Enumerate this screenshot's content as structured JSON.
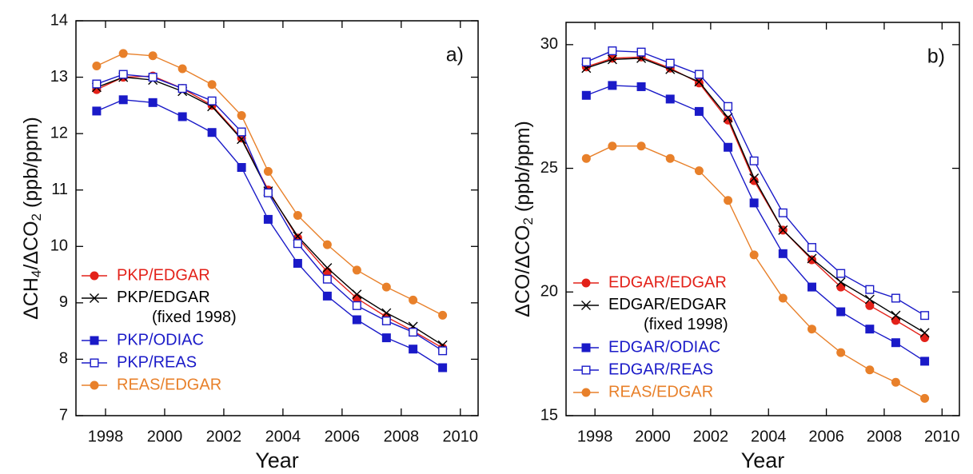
{
  "chart_data": [
    {
      "type": "line",
      "annotation": "a)",
      "x_label": "Year",
      "y_label": [
        "ΔCH",
        "4",
        "/ΔCO",
        "2",
        " (ppb/ppm)"
      ],
      "x": [
        1997.7,
        1998.6,
        1999.6,
        2000.6,
        2001.6,
        2002.6,
        2003.5,
        2004.5,
        2005.5,
        2006.5,
        2007.5,
        2008.4,
        2009.4
      ],
      "xlim": [
        1997,
        2010.6
      ],
      "xticks": [
        1998,
        2000,
        2002,
        2004,
        2006,
        2008,
        2010
      ],
      "ylim": [
        7,
        14
      ],
      "yticks": [
        7,
        8,
        9,
        10,
        11,
        12,
        13,
        14
      ],
      "legend": "lower left",
      "series": [
        {
          "name": "PKP/EDGAR",
          "color": "#e32119",
          "marker": "circle",
          "values": [
            12.78,
            13.0,
            13.02,
            12.8,
            12.5,
            11.92,
            11.0,
            10.15,
            9.55,
            9.08,
            8.75,
            8.5,
            8.2
          ]
        },
        {
          "name": "PKP/EDGAR\n(fixed 1998)",
          "color": "#000000",
          "marker": "cross",
          "values": [
            12.82,
            13.0,
            12.95,
            12.75,
            12.48,
            11.9,
            10.98,
            10.18,
            9.62,
            9.15,
            8.82,
            8.58,
            8.25
          ]
        },
        {
          "name": "PKP/ODIAC",
          "color": "#1a1ac8",
          "marker": "square",
          "values": [
            12.4,
            12.6,
            12.55,
            12.3,
            12.02,
            11.4,
            10.48,
            9.7,
            9.12,
            8.7,
            8.38,
            8.18,
            7.85
          ]
        },
        {
          "name": "PKP/REAS",
          "color": "#1a1ac8",
          "marker": "open-square",
          "values": [
            12.88,
            13.05,
            13.0,
            12.8,
            12.58,
            12.03,
            10.95,
            10.05,
            9.42,
            8.95,
            8.68,
            8.48,
            8.15
          ]
        },
        {
          "name": "REAS/EDGAR",
          "color": "#e8802a",
          "marker": "circle",
          "values": [
            13.2,
            13.42,
            13.38,
            13.15,
            12.87,
            12.32,
            11.33,
            10.55,
            10.03,
            9.58,
            9.28,
            9.05,
            8.78
          ]
        }
      ]
    },
    {
      "type": "line",
      "annotation": "b)",
      "x_label": "Year",
      "y_label": [
        "ΔCO/ΔCO",
        "2",
        " (ppb/ppm)"
      ],
      "x": [
        1997.7,
        1998.6,
        1999.6,
        2000.6,
        2001.6,
        2002.6,
        2003.5,
        2004.5,
        2005.5,
        2006.5,
        2007.5,
        2008.4,
        2009.4
      ],
      "xlim": [
        1997,
        2010.6
      ],
      "xticks": [
        1998,
        2000,
        2002,
        2004,
        2006,
        2008,
        2010
      ],
      "ylim": [
        15,
        30.9
      ],
      "yticks": [
        15,
        20,
        25,
        30
      ],
      "legend": "lower left",
      "series": [
        {
          "name": "EDGAR/EDGAR",
          "color": "#e32119",
          "marker": "circle",
          "values": [
            29.1,
            29.45,
            29.5,
            29.05,
            28.45,
            26.95,
            24.5,
            22.5,
            21.3,
            20.2,
            19.45,
            18.85,
            18.15
          ]
        },
        {
          "name": "EDGAR/EDGAR\n(fixed 1998)",
          "color": "#000000",
          "marker": "cross",
          "values": [
            29.05,
            29.4,
            29.45,
            29.0,
            28.5,
            27.05,
            24.6,
            22.5,
            21.35,
            20.4,
            19.7,
            19.05,
            18.35
          ]
        },
        {
          "name": "EDGAR/ODIAC",
          "color": "#1a1ac8",
          "marker": "square",
          "values": [
            27.95,
            28.35,
            28.3,
            27.8,
            27.3,
            25.85,
            23.6,
            21.55,
            20.2,
            19.2,
            18.5,
            17.95,
            17.2
          ]
        },
        {
          "name": "EDGAR/REAS",
          "color": "#1a1ac8",
          "marker": "open-square",
          "values": [
            29.3,
            29.75,
            29.7,
            29.25,
            28.8,
            27.5,
            25.3,
            23.2,
            21.8,
            20.75,
            20.1,
            19.75,
            19.05
          ]
        },
        {
          "name": "REAS/EDGAR",
          "color": "#e8802a",
          "marker": "circle",
          "values": [
            25.4,
            25.9,
            25.9,
            25.4,
            24.9,
            23.7,
            21.5,
            19.75,
            18.5,
            17.55,
            16.85,
            16.35,
            15.7
          ]
        }
      ]
    }
  ]
}
